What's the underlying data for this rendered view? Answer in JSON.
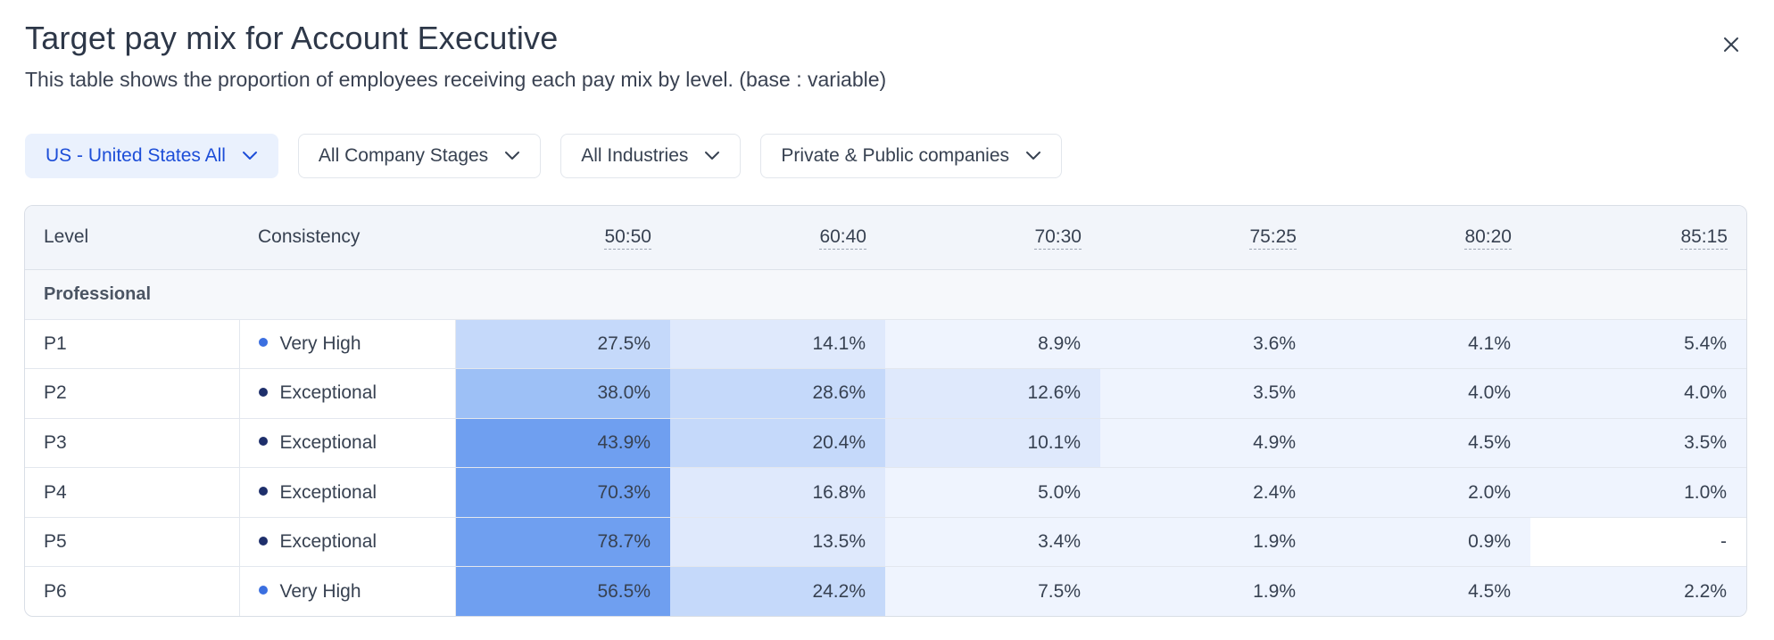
{
  "header": {
    "title": "Target pay mix for Account Executive",
    "subtitle": "This table shows the proportion of employees receiving each pay mix by level. (base : variable)"
  },
  "filters": [
    {
      "label": "US - United States All",
      "active": true
    },
    {
      "label": "All Company Stages",
      "active": false
    },
    {
      "label": "All Industries",
      "active": false
    },
    {
      "label": "Private & Public companies",
      "active": false
    }
  ],
  "table": {
    "columns": [
      "Level",
      "Consistency",
      "50:50",
      "60:40",
      "70:30",
      "75:25",
      "80:20",
      "85:15"
    ],
    "group_label": "Professional",
    "rows": [
      {
        "level": "P1",
        "consistency": "Very High",
        "dot_color": "#3b6fe0",
        "values": [
          "27.5%",
          "14.1%",
          "8.9%",
          "3.6%",
          "4.1%",
          "5.4%"
        ]
      },
      {
        "level": "P2",
        "consistency": "Exceptional",
        "dot_color": "#1e2f6b",
        "values": [
          "38.0%",
          "28.6%",
          "12.6%",
          "3.5%",
          "4.0%",
          "4.0%"
        ]
      },
      {
        "level": "P3",
        "consistency": "Exceptional",
        "dot_color": "#1e2f6b",
        "values": [
          "43.9%",
          "20.4%",
          "10.1%",
          "4.9%",
          "4.5%",
          "3.5%"
        ]
      },
      {
        "level": "P4",
        "consistency": "Exceptional",
        "dot_color": "#1e2f6b",
        "values": [
          "70.3%",
          "16.8%",
          "5.0%",
          "2.4%",
          "2.0%",
          "1.0%"
        ]
      },
      {
        "level": "P5",
        "consistency": "Exceptional",
        "dot_color": "#1e2f6b",
        "values": [
          "78.7%",
          "13.5%",
          "3.4%",
          "1.9%",
          "0.9%",
          "-"
        ]
      },
      {
        "level": "P6",
        "consistency": "Very High",
        "dot_color": "#3b6fe0",
        "values": [
          "56.5%",
          "24.2%",
          "7.5%",
          "1.9%",
          "4.5%",
          "2.2%"
        ]
      }
    ]
  },
  "colors": {
    "accent": "#1d4ed8",
    "active_filter_bg": "#eaf1fd",
    "heat_scale": [
      "#6f9ff0",
      "#9dc0f6",
      "#c5d9fa",
      "#dfe9fc",
      "#eff4fe",
      "#ffffff"
    ]
  },
  "icons": {
    "close": "close-icon",
    "filter_chevron": "chevron-down-icon"
  }
}
